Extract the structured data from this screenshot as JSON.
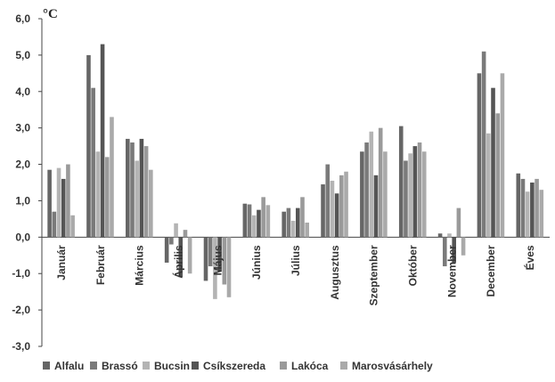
{
  "chart_data": {
    "type": "bar",
    "unit_label": "°C",
    "categories": [
      "Január",
      "Február",
      "Március",
      "Április",
      "Május",
      "Június",
      "Július",
      "Augusztus",
      "Szeptember",
      "Október",
      "November",
      "December",
      "Éves"
    ],
    "series": [
      {
        "name": "Alfalu",
        "color": "#666666",
        "values": [
          1.85,
          5.0,
          2.7,
          -0.7,
          -1.2,
          0.92,
          0.7,
          1.45,
          2.35,
          3.05,
          0.1,
          4.5,
          1.75
        ]
      },
      {
        "name": "Brassó",
        "color": "#7a7a7a",
        "values": [
          0.7,
          4.1,
          2.6,
          -0.2,
          -0.8,
          0.9,
          0.8,
          2.0,
          2.6,
          2.1,
          -0.8,
          5.1,
          1.6
        ]
      },
      {
        "name": "Bucsin",
        "color": "#b4b4b4",
        "values": [
          1.9,
          2.35,
          2.1,
          0.38,
          -1.7,
          0.6,
          0.45,
          1.55,
          2.9,
          2.3,
          0.1,
          2.85,
          1.25
        ]
      },
      {
        "name": "Csíkszereda",
        "color": "#555555",
        "values": [
          1.6,
          5.3,
          2.7,
          -1.1,
          -0.95,
          0.75,
          0.8,
          1.2,
          1.7,
          2.5,
          -0.7,
          4.1,
          1.5
        ]
      },
      {
        "name": "Lakóca",
        "color": "#9a9a9a",
        "values": [
          2.0,
          2.2,
          2.5,
          0.2,
          -1.3,
          1.1,
          1.1,
          1.7,
          3.0,
          2.6,
          0.8,
          3.4,
          1.6
        ]
      },
      {
        "name": "Marosvásárhely",
        "color": "#aaaaaa",
        "values": [
          0.6,
          3.3,
          1.85,
          -1.0,
          -1.65,
          0.88,
          0.4,
          1.8,
          2.35,
          2.35,
          -0.5,
          4.5,
          1.3
        ]
      }
    ],
    "ylim": [
      -3.0,
      6.0
    ],
    "yticks": [
      "6,0",
      "5,0",
      "4,0",
      "3,0",
      "2,0",
      "1,0",
      "0,0",
      "-1,0",
      "-2,0",
      "-3,0"
    ],
    "ytick_values": [
      6,
      5,
      4,
      3,
      2,
      1,
      0,
      -1,
      -2,
      -3
    ],
    "grid": false,
    "legend_position": "bottom"
  }
}
